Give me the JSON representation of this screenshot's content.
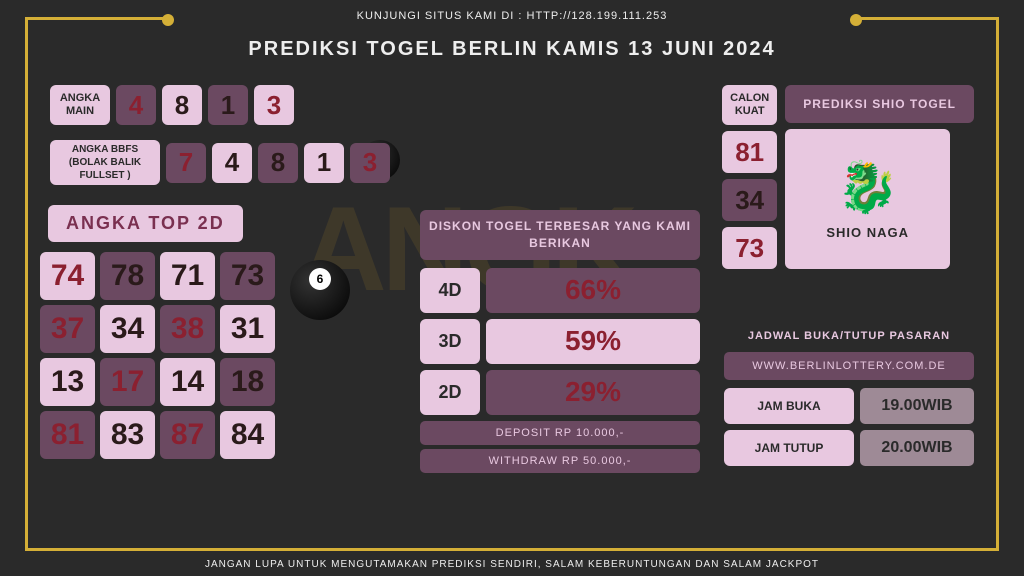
{
  "header": {
    "top_text": "KUNJUNGI SITUS KAMI DI : HTTP://128.199.111.253",
    "title": "PREDIKSI TOGEL BERLIN KAMIS 13 JUNI 2024"
  },
  "angka_main": {
    "label": "ANGKA MAIN",
    "numbers": [
      {
        "val": "4",
        "bg": "num-dark",
        "color": "txt-red"
      },
      {
        "val": "8",
        "bg": "num-light",
        "color": "txt-dark"
      },
      {
        "val": "1",
        "bg": "num-dark",
        "color": "txt-dark"
      },
      {
        "val": "3",
        "bg": "num-light",
        "color": "txt-red"
      }
    ]
  },
  "bbfs": {
    "label": "ANGKA BBFS (BOLAK BALIK FULLSET )",
    "numbers": [
      {
        "val": "7",
        "bg": "num-dark",
        "color": "txt-red"
      },
      {
        "val": "4",
        "bg": "num-light",
        "color": "txt-dark"
      },
      {
        "val": "8",
        "bg": "num-dark",
        "color": "txt-dark"
      },
      {
        "val": "1",
        "bg": "num-light",
        "color": "txt-dark"
      },
      {
        "val": "3",
        "bg": "num-dark",
        "color": "txt-red"
      }
    ]
  },
  "top2d": {
    "title": "ANGKA TOP 2D",
    "cells": [
      {
        "val": "74",
        "bg": "num-light",
        "color": "txt-red"
      },
      {
        "val": "78",
        "bg": "num-dark",
        "color": "txt-dark"
      },
      {
        "val": "71",
        "bg": "num-light",
        "color": "txt-dark"
      },
      {
        "val": "73",
        "bg": "num-dark",
        "color": "txt-dark"
      },
      {
        "val": "37",
        "bg": "num-dark",
        "color": "txt-red"
      },
      {
        "val": "34",
        "bg": "num-light",
        "color": "txt-dark"
      },
      {
        "val": "38",
        "bg": "num-dark",
        "color": "txt-red"
      },
      {
        "val": "31",
        "bg": "num-light",
        "color": "txt-dark"
      },
      {
        "val": "13",
        "bg": "num-light",
        "color": "txt-dark"
      },
      {
        "val": "17",
        "bg": "num-dark",
        "color": "txt-red"
      },
      {
        "val": "14",
        "bg": "num-light",
        "color": "txt-dark"
      },
      {
        "val": "18",
        "bg": "num-dark",
        "color": "txt-dark"
      },
      {
        "val": "81",
        "bg": "num-dark",
        "color": "txt-red"
      },
      {
        "val": "83",
        "bg": "num-light",
        "color": "txt-dark"
      },
      {
        "val": "87",
        "bg": "num-dark",
        "color": "txt-red"
      },
      {
        "val": "84",
        "bg": "num-light",
        "color": "txt-dark"
      }
    ]
  },
  "diskon": {
    "title": "DISKON TOGEL TERBESAR YANG KAMI BERIKAN",
    "rows": [
      {
        "label": "4D",
        "val": "66%",
        "bg": "num-dark",
        "color": "txt-red"
      },
      {
        "label": "3D",
        "val": "59%",
        "bg": "num-light",
        "color": "txt-red"
      },
      {
        "label": "2D",
        "val": "29%",
        "bg": "num-dark",
        "color": "txt-red"
      }
    ],
    "deposit": "DEPOSIT RP 10.000,-",
    "withdraw": "WITHDRAW RP 50.000,-"
  },
  "shio": {
    "calon_label": "CALON KUAT",
    "prediksi_title": "PREDIKSI SHIO TOGEL",
    "numbers": [
      {
        "val": "81",
        "bg": "num-light",
        "color": "txt-red"
      },
      {
        "val": "34",
        "bg": "num-dark",
        "color": "txt-dark"
      },
      {
        "val": "73",
        "bg": "num-light",
        "color": "txt-red"
      }
    ],
    "name": "SHIO NAGA"
  },
  "jadwal": {
    "title": "JADWAL BUKA/TUTUP PASARAN",
    "site": "WWW.BERLINLOTTERY.COM.DE",
    "buka_label": "JAM BUKA",
    "buka_time": "19.00WIB",
    "tutup_label": "JAM TUTUP",
    "tutup_time": "20.00WIB"
  },
  "footer": "JANGAN LUPA UNTUK MENGUTAMAKAN PREDIKSI SENDIRI, SALAM KEBERUNTUNGAN DAN SALAM JACKPOT",
  "colors": {
    "gold": "#d4af37",
    "box_light": "#e8c8e0",
    "box_dark": "#6b4961",
    "text_red": "#8b2030"
  }
}
